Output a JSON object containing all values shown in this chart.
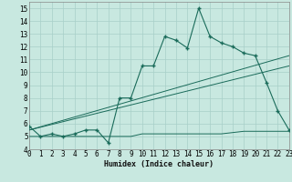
{
  "xlabel": "Humidex (Indice chaleur)",
  "bg_color": "#c8e8e0",
  "grid_color": "#a8cfc8",
  "line_color": "#1a6b5a",
  "xlim": [
    0,
    23
  ],
  "ylim": [
    4,
    15.5
  ],
  "yticks": [
    4,
    5,
    6,
    7,
    8,
    9,
    10,
    11,
    12,
    13,
    14,
    15
  ],
  "xticks": [
    0,
    1,
    2,
    3,
    4,
    5,
    6,
    7,
    8,
    9,
    10,
    11,
    12,
    13,
    14,
    15,
    16,
    17,
    18,
    19,
    20,
    21,
    22,
    23
  ],
  "main_x": [
    0,
    1,
    2,
    3,
    4,
    5,
    6,
    7,
    8,
    9,
    10,
    11,
    12,
    13,
    14,
    15,
    16,
    17,
    18,
    19,
    20,
    21,
    22,
    23
  ],
  "main_y": [
    5.8,
    5.0,
    5.2,
    5.0,
    5.2,
    5.5,
    5.5,
    4.5,
    8.0,
    8.0,
    10.5,
    10.5,
    12.8,
    12.5,
    11.9,
    15.0,
    12.8,
    12.3,
    12.0,
    11.5,
    11.3,
    9.2,
    7.0,
    5.5
  ],
  "flat_x": [
    0,
    1,
    2,
    3,
    4,
    5,
    6,
    7,
    8,
    9,
    10,
    11,
    12,
    13,
    14,
    15,
    16,
    17,
    18,
    19,
    20,
    21,
    22,
    23
  ],
  "flat_y": [
    5.0,
    5.0,
    5.0,
    5.0,
    5.0,
    5.0,
    5.0,
    5.0,
    5.0,
    5.0,
    5.2,
    5.2,
    5.2,
    5.2,
    5.2,
    5.2,
    5.2,
    5.2,
    5.3,
    5.4,
    5.4,
    5.4,
    5.4,
    5.4
  ],
  "trend1_x": [
    0,
    23
  ],
  "trend1_y": [
    5.5,
    10.5
  ],
  "trend2_x": [
    0,
    23
  ],
  "trend2_y": [
    5.5,
    11.3
  ]
}
